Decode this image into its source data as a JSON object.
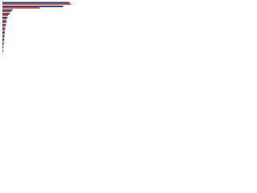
{
  "chart_data": {
    "type": "bar",
    "orientation": "horizontal",
    "categories": [
      null,
      null,
      null,
      null,
      null,
      null,
      null,
      null,
      null,
      null,
      null,
      null,
      null,
      null
    ],
    "series": [
      {
        "color": "#1b3f7a",
        "values": [
          94,
          85,
          14,
          10,
          7,
          6,
          5,
          4,
          3.5,
          3,
          2.5,
          2,
          1.5,
          1
        ]
      },
      {
        "color": "#d0453a",
        "values": [
          96,
          52,
          12,
          8,
          6,
          5,
          4,
          3.5,
          3,
          2.5,
          2,
          1.5,
          1,
          0.8
        ]
      }
    ],
    "xlim": [
      0,
      100
    ]
  }
}
